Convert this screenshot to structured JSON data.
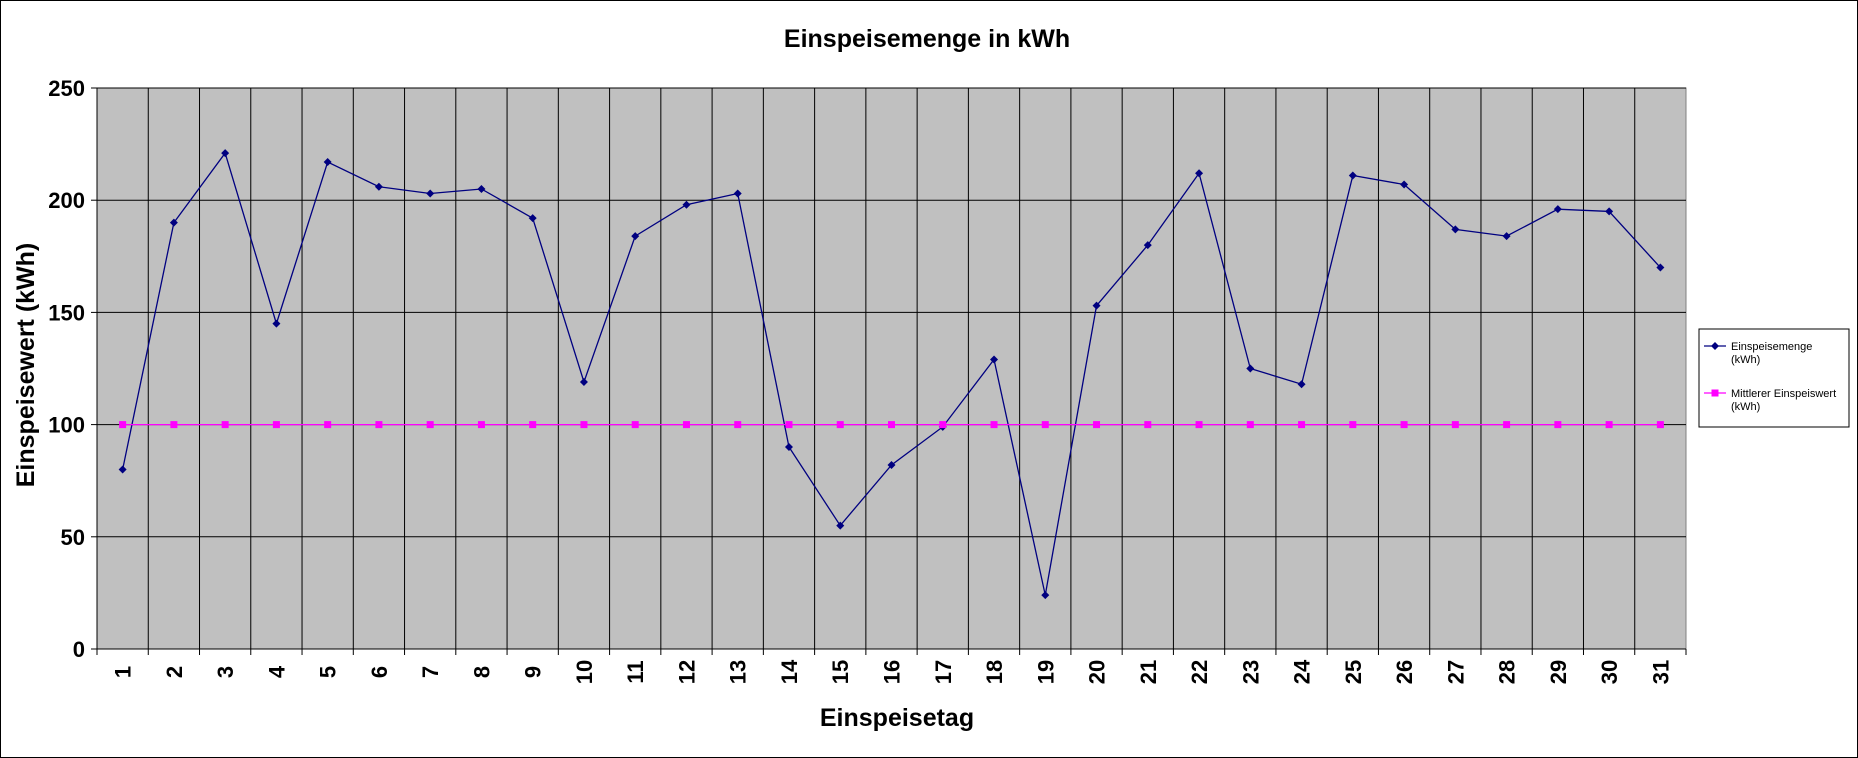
{
  "chart_data": {
    "type": "line",
    "title": "Einspeisemenge in kWh",
    "xlabel": "Einspeisetag",
    "ylabel": "Einspeisewert  (kWh)",
    "ylim": [
      0,
      250
    ],
    "yticks": [
      "0",
      "50",
      "100",
      "150",
      "200",
      "250"
    ],
    "grid": true,
    "legend_position": "right",
    "categories": [
      "1",
      "2",
      "3",
      "4",
      "5",
      "6",
      "7",
      "8",
      "9",
      "10",
      "11",
      "12",
      "13",
      "14",
      "15",
      "16",
      "17",
      "18",
      "19",
      "20",
      "21",
      "22",
      "23",
      "24",
      "25",
      "26",
      "27",
      "28",
      "29",
      "30",
      "31"
    ],
    "series": [
      {
        "name": "Einspeisemenge (kWh)",
        "legend_lines": [
          "Einspeisemenge",
          "(kWh)"
        ],
        "color": "#000080",
        "marker": "diamond",
        "values": [
          80,
          190,
          221,
          145,
          217,
          206,
          203,
          205,
          192,
          119,
          184,
          198,
          203,
          90,
          55,
          82,
          99,
          129,
          24,
          153,
          180,
          212,
          125,
          118,
          211,
          207,
          187,
          184,
          196,
          195,
          170
        ]
      },
      {
        "name": "Mittlerer Einspeiswert (kWh)",
        "legend_lines": [
          "Mittlerer Einspeiswert",
          "(kWh)"
        ],
        "color": "#ff00ff",
        "marker": "square",
        "values": [
          100,
          100,
          100,
          100,
          100,
          100,
          100,
          100,
          100,
          100,
          100,
          100,
          100,
          100,
          100,
          100,
          100,
          100,
          100,
          100,
          100,
          100,
          100,
          100,
          100,
          100,
          100,
          100,
          100,
          100,
          100
        ]
      }
    ]
  },
  "colors": {
    "plot_background": "#c0c0c0",
    "gridlines": "#000000"
  }
}
